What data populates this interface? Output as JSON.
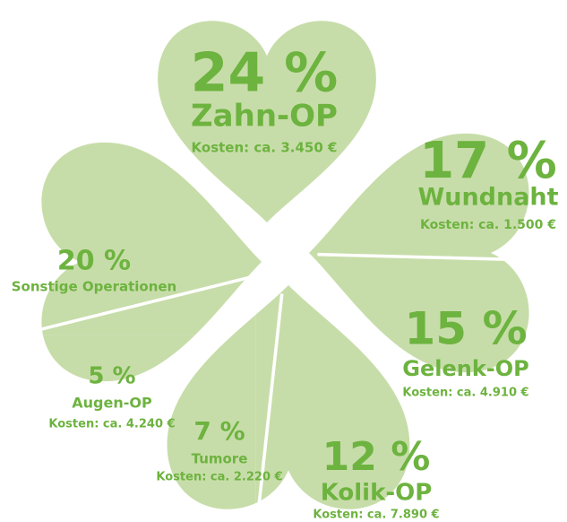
{
  "chart_data": {
    "type": "clover",
    "categories": [
      "Zahn-OP",
      "Wundnaht",
      "Gelenk-OP",
      "Kolik-OP",
      "Tumore",
      "Augen-OP",
      "Sonstige Operationen"
    ],
    "values": [
      24,
      17,
      15,
      12,
      7,
      5,
      20
    ],
    "value_labels": [
      "24 %",
      "17 %",
      "15 %",
      "12 %",
      "7 %",
      "5 %",
      "20 %"
    ],
    "costs": [
      "Kosten: ca. 3.450 €",
      "Kosten: ca. 1.500 €",
      "Kosten: ca. 4.910 €",
      "Kosten: ca. 7.890 €",
      "Kosten: ca. 2.220 €",
      "Kosten: ca. 4.240 €",
      null
    ],
    "color": "#c7dda9",
    "text_color": "#6db33f"
  }
}
